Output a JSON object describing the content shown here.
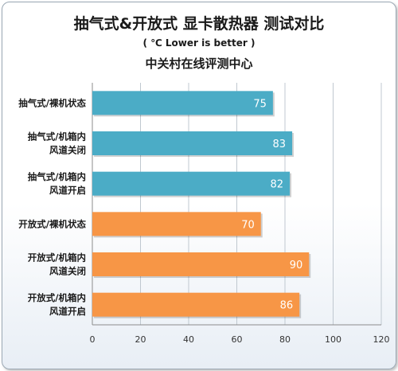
{
  "title": "抽气式&开放式 显卡散热器 测试对比",
  "subtitle": "( ℃ Lower is better )",
  "source": "中关村在线评测中心",
  "colors": {
    "series_a": "#4bacc6",
    "series_b": "#f79646",
    "grid": "#c0c8d0"
  },
  "chart_data": {
    "type": "bar",
    "orientation": "horizontal",
    "categories": [
      [
        "抽气式/裸机状态"
      ],
      [
        "抽气式/机箱内",
        "风道关闭"
      ],
      [
        "抽气式/机箱内",
        "风道开启"
      ],
      [
        "开放式/裸机状态"
      ],
      [
        "开放式/机箱内",
        "风道关闭"
      ],
      [
        "开放式/机箱内",
        "风道开启"
      ]
    ],
    "values": [
      75,
      83,
      82,
      70,
      90,
      86
    ],
    "groups": [
      "a",
      "a",
      "a",
      "b",
      "b",
      "b"
    ],
    "xlim": [
      0,
      120
    ],
    "xticks": [
      0,
      20,
      40,
      60,
      80,
      100,
      120
    ],
    "grid": true
  }
}
